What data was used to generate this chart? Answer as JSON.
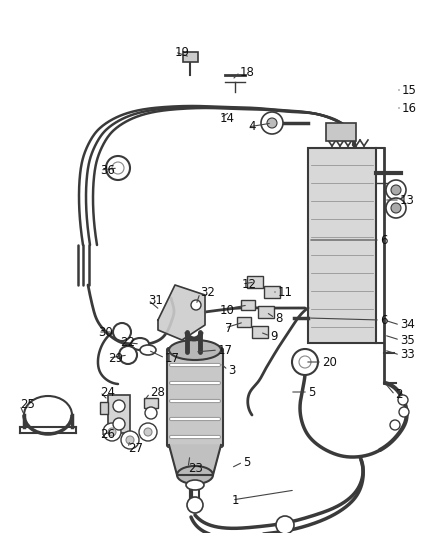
{
  "bg_color": "#ffffff",
  "line_color": "#3a3a3a",
  "label_color": "#111111",
  "fig_width": 4.38,
  "fig_height": 5.33,
  "dpi": 100,
  "pipe_lw": 2.2,
  "thin_lw": 1.0
}
